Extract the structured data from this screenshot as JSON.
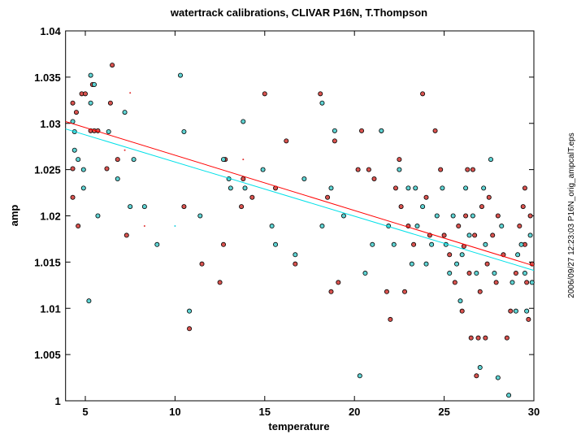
{
  "chart_data": {
    "type": "scatter",
    "title": "watertrack calibrations, CLIVAR P16N, T.Thompson",
    "xlabel": "temperature",
    "ylabel": "amp",
    "side_note": "2006/09/27 12:23:03   P16N_orig_ampcalT.eps",
    "xlim": [
      3.9,
      30
    ],
    "ylim": [
      1,
      1.04
    ],
    "xticks": [
      5,
      10,
      15,
      20,
      25,
      30
    ],
    "yticks": [
      1,
      1.005,
      1.01,
      1.015,
      1.02,
      1.025,
      1.03,
      1.035,
      1.04
    ],
    "series": [
      {
        "style": "circle",
        "color": "#d9534f",
        "x": [
          4.3,
          4.3,
          4.3,
          4.5,
          4.6,
          4.8,
          5.0,
          5.3,
          5.4,
          5.5,
          5.7,
          6.2,
          6.4,
          6.5,
          6.8,
          7.3,
          10.5,
          10.8,
          11.5,
          12.5,
          12.7,
          12.8,
          13.7,
          13.8,
          14.3,
          15.0,
          15.6,
          16.2,
          16.7,
          18.1,
          18.5,
          18.7,
          18.9,
          19.1,
          20.2,
          20.4,
          20.8,
          21.1,
          21.5,
          21.8,
          22.0,
          22.3,
          22.5,
          22.6,
          22.8,
          23.0,
          23.3,
          23.8,
          24.0,
          24.2,
          24.5,
          24.8,
          25.0,
          25.3,
          25.6,
          25.8,
          26.0,
          26.2,
          26.3,
          26.4,
          26.5,
          26.6,
          26.7,
          26.9,
          27.0,
          27.1,
          27.3,
          27.4,
          27.5,
          27.7,
          27.9,
          28.0,
          28.3,
          28.5,
          28.7,
          29.0,
          29.2,
          29.4,
          29.5,
          29.6,
          29.7,
          29.8,
          29.9,
          26.1,
          26.8,
          29.5
        ],
        "values": [
          1.0322,
          1.0251,
          1.022,
          1.0312,
          1.0189,
          1.0332,
          1.0332,
          1.0292,
          1.0342,
          1.0292,
          1.0292,
          1.0251,
          1.0322,
          1.0363,
          1.0261,
          1.0179,
          1.021,
          1.0078,
          1.0148,
          1.0128,
          1.0169,
          1.0261,
          1.021,
          1.024,
          1.022,
          1.0332,
          1.023,
          1.0281,
          1.0148,
          1.0332,
          1.022,
          1.0118,
          1.0281,
          1.0128,
          1.025,
          1.0292,
          1.025,
          1.024,
          1.0292,
          1.0118,
          1.0088,
          1.023,
          1.0261,
          1.021,
          1.0118,
          1.0189,
          1.0169,
          1.0332,
          1.022,
          1.0179,
          1.0292,
          1.025,
          1.0179,
          1.0158,
          1.0128,
          1.0189,
          1.0097,
          1.02,
          1.025,
          1.0138,
          1.0068,
          1.025,
          1.0179,
          1.0068,
          1.0118,
          1.021,
          1.0068,
          1.0148,
          1.022,
          1.0179,
          1.0128,
          1.02,
          1.0158,
          1.0068,
          1.0097,
          1.0138,
          1.0189,
          1.021,
          1.0169,
          1.0128,
          1.0088,
          1.02,
          1.0148,
          1.0167,
          1.0027,
          1.023
        ]
      },
      {
        "style": "circle",
        "color": "#5fd3d3",
        "x": [
          4.3,
          4.4,
          4.4,
          4.6,
          4.9,
          4.9,
          5.2,
          5.3,
          5.3,
          5.5,
          5.7,
          6.3,
          6.8,
          7.2,
          7.5,
          7.7,
          8.3,
          9.0,
          10.3,
          10.5,
          10.8,
          11.4,
          12.7,
          13.0,
          13.1,
          13.8,
          13.9,
          14.9,
          15.4,
          15.6,
          16.7,
          17.2,
          18.2,
          18.2,
          18.7,
          18.9,
          19.4,
          20.3,
          20.6,
          21.0,
          21.5,
          21.9,
          22.2,
          22.5,
          23.0,
          23.2,
          23.4,
          23.5,
          23.8,
          24.0,
          24.3,
          24.6,
          24.9,
          25.1,
          25.3,
          25.5,
          25.7,
          25.9,
          26.0,
          26.2,
          26.4,
          26.6,
          26.8,
          27.0,
          27.2,
          27.3,
          27.6,
          27.8,
          28.0,
          28.2,
          28.6,
          28.8,
          29.1,
          29.3,
          29.5,
          29.6,
          29.8,
          29.9,
          29.0
        ],
        "values": [
          1.0302,
          1.0291,
          1.0271,
          1.0261,
          1.023,
          1.025,
          1.0108,
          1.0322,
          1.0352,
          1.0342,
          1.02,
          1.0291,
          1.024,
          1.0312,
          1.021,
          1.0261,
          1.021,
          1.0169,
          1.0352,
          1.0291,
          1.0097,
          1.02,
          1.0261,
          1.024,
          1.023,
          1.0302,
          1.023,
          1.025,
          1.0189,
          1.0169,
          1.0158,
          1.024,
          1.0322,
          1.0189,
          1.023,
          1.0292,
          1.02,
          1.0027,
          1.0138,
          1.0169,
          1.0292,
          1.0189,
          1.0169,
          1.025,
          1.023,
          1.0148,
          1.023,
          1.0189,
          1.021,
          1.0148,
          1.0169,
          1.02,
          1.023,
          1.0169,
          1.0138,
          1.02,
          1.0148,
          1.0108,
          1.0158,
          1.023,
          1.0179,
          1.02,
          1.0138,
          1.0036,
          1.023,
          1.0169,
          1.0261,
          1.0138,
          1.0025,
          1.0189,
          1.0006,
          1.0128,
          1.0158,
          1.0169,
          1.0138,
          1.0097,
          1.0179,
          1.0128,
          1.0097
        ]
      },
      {
        "style": "dot",
        "color": "#e03030",
        "x": [
          7.5,
          7.2,
          8.3,
          13.8
        ],
        "values": [
          1.0333,
          1.0271,
          1.0189,
          1.0261
        ]
      },
      {
        "style": "dot",
        "color": "#20d0e0",
        "x": [
          10.0
        ],
        "values": [
          1.0189
        ]
      },
      {
        "style": "line",
        "color": "#ff0000",
        "x": [
          3.9,
          30
        ],
        "values": [
          1.0302,
          1.0146
        ]
      },
      {
        "style": "line",
        "color": "#00e0e8",
        "x": [
          3.9,
          30
        ],
        "values": [
          1.0294,
          1.0141
        ]
      }
    ]
  }
}
